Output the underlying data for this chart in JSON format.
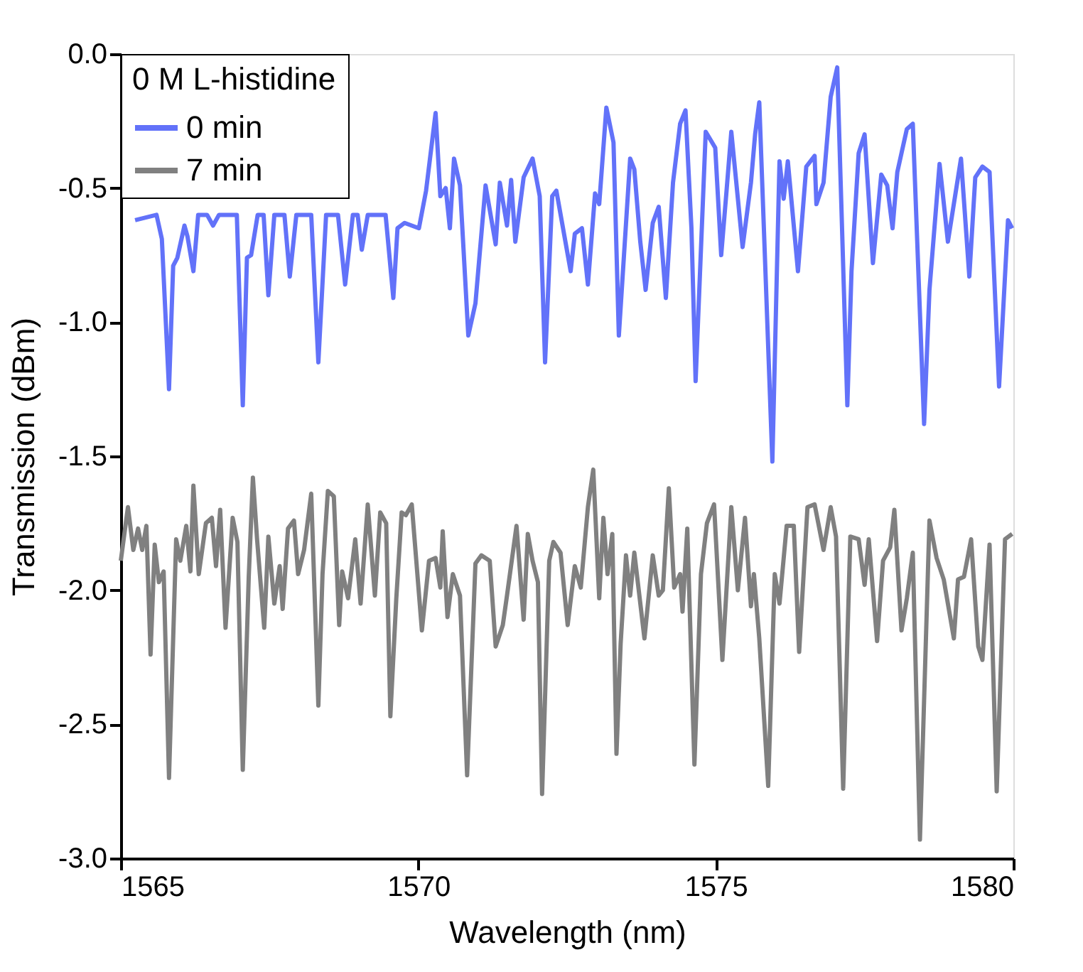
{
  "chart_data": {
    "type": "line",
    "xlabel": "Wavelength (nm)",
    "ylabel": "Transmission (dBm)",
    "legend_title": "0 M L-histidine",
    "legend": "top left",
    "grid": false,
    "marker": "none",
    "line_style": "solid",
    "xlim": [
      1565,
      1580
    ],
    "xticks": [
      1565,
      1570,
      1575,
      1580
    ],
    "ylim": [
      -3.0,
      0.0
    ],
    "yticks": [
      {
        "value": -3.0,
        "label": "-3.0"
      },
      {
        "value": -2.5,
        "label": "-2.5"
      },
      {
        "value": -2.0,
        "label": "-2.0"
      },
      {
        "value": -1.5,
        "label": "-1.5"
      },
      {
        "value": -1.0,
        "label": "-1.0"
      },
      {
        "value": -0.5,
        "label": "-0.5"
      },
      {
        "value": 0.0,
        "label": "0.0"
      }
    ],
    "series": [
      {
        "name": "0 min",
        "color": "#6272f9",
        "x": [
          1565.24,
          1565.6,
          1565.69,
          1565.81,
          1565.88,
          1565.95,
          1566.07,
          1566.12,
          1566.22,
          1566.3,
          1566.45,
          1566.55,
          1566.65,
          1566.95,
          1567.05,
          1567.12,
          1567.19,
          1567.3,
          1567.4,
          1567.48,
          1567.58,
          1567.75,
          1567.84,
          1567.95,
          1568.2,
          1568.32,
          1568.45,
          1568.65,
          1568.77,
          1568.9,
          1568.98,
          1569.05,
          1569.15,
          1569.45,
          1569.58,
          1569.65,
          1569.77,
          1570.01,
          1570.13,
          1570.29,
          1570.37,
          1570.46,
          1570.53,
          1570.6,
          1570.7,
          1570.84,
          1570.96,
          1571.13,
          1571.3,
          1571.37,
          1571.49,
          1571.56,
          1571.63,
          1571.77,
          1571.92,
          1572.04,
          1572.13,
          1572.25,
          1572.32,
          1572.56,
          1572.63,
          1572.75,
          1572.85,
          1572.97,
          1573.04,
          1573.16,
          1573.28,
          1573.37,
          1573.56,
          1573.63,
          1573.73,
          1573.82,
          1573.94,
          1574.04,
          1574.16,
          1574.28,
          1574.4,
          1574.49,
          1574.59,
          1574.66,
          1574.83,
          1574.99,
          1575.09,
          1575.18,
          1575.26,
          1575.45,
          1575.59,
          1575.66,
          1575.73,
          1575.95,
          1576.07,
          1576.14,
          1576.21,
          1576.38,
          1576.52,
          1576.66,
          1576.69,
          1576.81,
          1576.93,
          1577.04,
          1577.21,
          1577.28,
          1577.4,
          1577.5,
          1577.64,
          1577.78,
          1577.88,
          1577.97,
          1578.05,
          1578.21,
          1578.31,
          1578.5,
          1578.59,
          1578.76,
          1578.9,
          1579.12,
          1579.26,
          1579.36,
          1579.48,
          1579.6,
          1579.76,
          1579.91,
          1579.98
        ],
        "values": [
          -0.62,
          -0.6,
          -0.69,
          -1.25,
          -0.79,
          -0.76,
          -0.64,
          -0.68,
          -0.81,
          -0.6,
          -0.6,
          -0.64,
          -0.6,
          -0.6,
          -1.31,
          -0.76,
          -0.75,
          -0.6,
          -0.6,
          -0.9,
          -0.6,
          -0.6,
          -0.83,
          -0.6,
          -0.6,
          -1.15,
          -0.6,
          -0.6,
          -0.86,
          -0.6,
          -0.6,
          -0.73,
          -0.6,
          -0.6,
          -0.91,
          -0.65,
          -0.63,
          -0.65,
          -0.51,
          -0.22,
          -0.53,
          -0.5,
          -0.65,
          -0.39,
          -0.49,
          -1.05,
          -0.93,
          -0.49,
          -0.71,
          -0.48,
          -0.64,
          -0.47,
          -0.7,
          -0.46,
          -0.39,
          -0.53,
          -1.15,
          -0.53,
          -0.51,
          -0.81,
          -0.67,
          -0.65,
          -0.86,
          -0.52,
          -0.56,
          -0.2,
          -0.33,
          -1.05,
          -0.39,
          -0.43,
          -0.7,
          -0.88,
          -0.63,
          -0.57,
          -0.91,
          -0.48,
          -0.26,
          -0.21,
          -0.65,
          -1.22,
          -0.29,
          -0.35,
          -0.75,
          -0.51,
          -0.29,
          -0.72,
          -0.48,
          -0.3,
          -0.18,
          -1.52,
          -0.4,
          -0.54,
          -0.4,
          -0.81,
          -0.42,
          -0.38,
          -0.56,
          -0.48,
          -0.16,
          -0.05,
          -1.31,
          -0.81,
          -0.37,
          -0.3,
          -0.78,
          -0.45,
          -0.49,
          -0.65,
          -0.44,
          -0.28,
          -0.26,
          -1.38,
          -0.88,
          -0.41,
          -0.7,
          -0.39,
          -0.83,
          -0.46,
          -0.42,
          -0.44,
          -1.24,
          -0.62,
          -0.65
        ]
      },
      {
        "name": "7 min",
        "color": "#808080",
        "x": [
          1565.0,
          1565.12,
          1565.21,
          1565.29,
          1565.36,
          1565.43,
          1565.5,
          1565.57,
          1565.64,
          1565.72,
          1565.81,
          1565.93,
          1566.0,
          1566.1,
          1566.17,
          1566.22,
          1566.31,
          1566.43,
          1566.53,
          1566.6,
          1566.67,
          1566.76,
          1566.88,
          1566.96,
          1567.05,
          1567.15,
          1567.22,
          1567.29,
          1567.41,
          1567.48,
          1567.58,
          1567.67,
          1567.72,
          1567.81,
          1567.91,
          1567.98,
          1568.08,
          1568.2,
          1568.32,
          1568.39,
          1568.48,
          1568.58,
          1568.67,
          1568.72,
          1568.82,
          1568.94,
          1569.03,
          1569.15,
          1569.27,
          1569.36,
          1569.46,
          1569.53,
          1569.63,
          1569.72,
          1569.79,
          1569.89,
          1570.06,
          1570.18,
          1570.29,
          1570.37,
          1570.41,
          1570.49,
          1570.58,
          1570.7,
          1570.82,
          1570.96,
          1571.06,
          1571.2,
          1571.3,
          1571.42,
          1571.49,
          1571.65,
          1571.77,
          1571.84,
          1571.92,
          1572.01,
          1572.08,
          1572.2,
          1572.27,
          1572.39,
          1572.51,
          1572.63,
          1572.73,
          1572.85,
          1572.94,
          1573.04,
          1573.11,
          1573.18,
          1573.26,
          1573.33,
          1573.4,
          1573.49,
          1573.56,
          1573.63,
          1573.8,
          1573.94,
          1574.04,
          1574.11,
          1574.21,
          1574.3,
          1574.4,
          1574.44,
          1574.52,
          1574.64,
          1574.75,
          1574.85,
          1574.97,
          1575.11,
          1575.26,
          1575.37,
          1575.49,
          1575.59,
          1575.64,
          1575.73,
          1575.88,
          1575.99,
          1576.07,
          1576.19,
          1576.31,
          1576.4,
          1576.54,
          1576.66,
          1576.81,
          1576.93,
          1577.02,
          1577.14,
          1577.26,
          1577.4,
          1577.5,
          1577.57,
          1577.71,
          1577.81,
          1577.93,
          1578.0,
          1578.12,
          1578.21,
          1578.31,
          1578.43,
          1578.59,
          1578.71,
          1578.83,
          1579.0,
          1579.07,
          1579.17,
          1579.29,
          1579.41,
          1579.48,
          1579.6,
          1579.72,
          1579.86,
          1579.98
        ],
        "values": [
          -1.89,
          -1.69,
          -1.85,
          -1.77,
          -1.85,
          -1.76,
          -2.24,
          -1.83,
          -1.97,
          -1.93,
          -2.7,
          -1.81,
          -1.89,
          -1.76,
          -1.93,
          -1.61,
          -1.94,
          -1.75,
          -1.73,
          -1.91,
          -1.7,
          -2.14,
          -1.73,
          -1.82,
          -2.67,
          -1.95,
          -1.58,
          -1.81,
          -2.14,
          -1.8,
          -2.05,
          -1.91,
          -2.07,
          -1.77,
          -1.74,
          -1.94,
          -1.85,
          -1.64,
          -2.43,
          -1.94,
          -1.63,
          -1.65,
          -2.13,
          -1.93,
          -2.03,
          -1.81,
          -2.05,
          -1.68,
          -2.02,
          -1.71,
          -1.75,
          -2.47,
          -2.03,
          -1.71,
          -1.72,
          -1.68,
          -2.15,
          -1.89,
          -1.88,
          -1.99,
          -1.78,
          -2.1,
          -1.94,
          -2.02,
          -2.69,
          -1.9,
          -1.87,
          -1.89,
          -2.21,
          -2.13,
          -2.02,
          -1.76,
          -2.11,
          -1.79,
          -1.89,
          -1.97,
          -2.76,
          -1.89,
          -1.82,
          -1.86,
          -2.13,
          -1.91,
          -1.99,
          -1.69,
          -1.55,
          -2.03,
          -1.73,
          -1.94,
          -1.79,
          -2.61,
          -2.2,
          -1.87,
          -2.02,
          -1.86,
          -2.18,
          -1.87,
          -2.02,
          -2.0,
          -1.62,
          -1.99,
          -1.94,
          -2.08,
          -1.77,
          -2.65,
          -1.94,
          -1.75,
          -1.68,
          -2.26,
          -1.69,
          -2.0,
          -1.73,
          -2.06,
          -1.94,
          -2.18,
          -2.73,
          -1.94,
          -2.05,
          -1.76,
          -1.76,
          -2.23,
          -1.69,
          -1.68,
          -1.85,
          -1.69,
          -1.8,
          -2.74,
          -1.8,
          -1.81,
          -1.98,
          -1.81,
          -2.19,
          -1.89,
          -1.84,
          -1.7,
          -2.15,
          -2.03,
          -1.86,
          -2.93,
          -1.74,
          -1.88,
          -1.96,
          -2.18,
          -1.96,
          -1.95,
          -1.81,
          -2.21,
          -2.26,
          -1.83,
          -2.75,
          -1.81,
          -1.79
        ]
      }
    ]
  }
}
